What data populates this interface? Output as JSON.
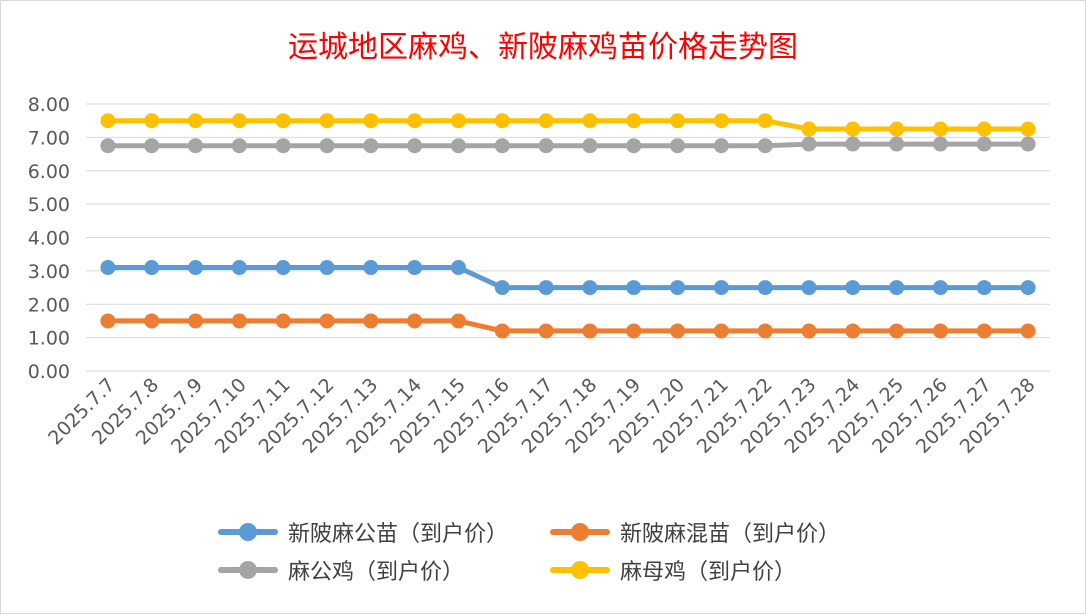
{
  "chart_data": {
    "type": "line",
    "title": "运城地区麻鸡、新陂麻鸡苗价格走势图",
    "categories": [
      "2025.7.7",
      "2025.7.8",
      "2025.7.9",
      "2025.7.10",
      "2025.7.11",
      "2025.7.12",
      "2025.7.13",
      "2025.7.14",
      "2025.7.15",
      "2025.7.16",
      "2025.7.17",
      "2025.7.18",
      "2025.7.19",
      "2025.7.20",
      "2025.7.21",
      "2025.7.22",
      "2025.7.23",
      "2025.7.24",
      "2025.7.25",
      "2025.7.26",
      "2025.7.27",
      "2025.7.28"
    ],
    "ylim": [
      0,
      8
    ],
    "yticks": [
      "0.00",
      "1.00",
      "2.00",
      "3.00",
      "4.00",
      "5.00",
      "6.00",
      "7.00",
      "8.00"
    ],
    "grid": true,
    "legend_position": "bottom",
    "series": [
      {
        "name": "新陂麻公苗（到户价）",
        "color": "#5b9bd5",
        "values": [
          3.1,
          3.1,
          3.1,
          3.1,
          3.1,
          3.1,
          3.1,
          3.1,
          3.1,
          2.5,
          2.5,
          2.5,
          2.5,
          2.5,
          2.5,
          2.5,
          2.5,
          2.5,
          2.5,
          2.5,
          2.5,
          2.5
        ]
      },
      {
        "name": "新陂麻混苗（到户价）",
        "color": "#ed7d31",
        "values": [
          1.5,
          1.5,
          1.5,
          1.5,
          1.5,
          1.5,
          1.5,
          1.5,
          1.5,
          1.2,
          1.2,
          1.2,
          1.2,
          1.2,
          1.2,
          1.2,
          1.2,
          1.2,
          1.2,
          1.2,
          1.2,
          1.2
        ]
      },
      {
        "name": "麻公鸡（到户价）",
        "color": "#a5a5a5",
        "values": [
          6.75,
          6.75,
          6.75,
          6.75,
          6.75,
          6.75,
          6.75,
          6.75,
          6.75,
          6.75,
          6.75,
          6.75,
          6.75,
          6.75,
          6.75,
          6.75,
          6.8,
          6.8,
          6.8,
          6.8,
          6.8,
          6.8
        ]
      },
      {
        "name": "麻母鸡（到户价）",
        "color": "#ffc000",
        "values": [
          7.5,
          7.5,
          7.5,
          7.5,
          7.5,
          7.5,
          7.5,
          7.5,
          7.5,
          7.5,
          7.5,
          7.5,
          7.5,
          7.5,
          7.5,
          7.5,
          7.25,
          7.25,
          7.25,
          7.25,
          7.25,
          7.25
        ]
      }
    ]
  }
}
